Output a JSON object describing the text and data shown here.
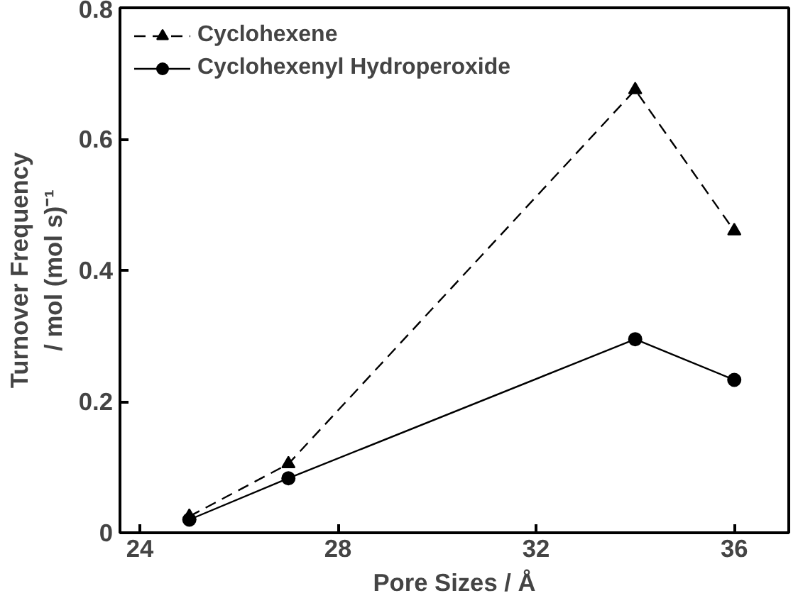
{
  "chart_data": {
    "type": "line",
    "xlabel": "Pore Sizes / Å",
    "ylabel": "Turnover Frequency\n/ mol (mol s)⁻¹",
    "x": [
      25,
      27,
      34,
      36
    ],
    "series": [
      {
        "name": "Cyclohexene",
        "color": "#000000",
        "values": [
          0.025,
          0.105,
          0.675,
          0.46
        ],
        "marker": "triangle",
        "line_style": "dashed"
      },
      {
        "name": "Cyclohexenyl Hydroperoxide",
        "color": "#000000",
        "values": [
          0.02,
          0.083,
          0.295,
          0.233
        ],
        "marker": "circle",
        "line_style": "solid"
      }
    ],
    "xlim": [
      23.6,
      37.1
    ],
    "xticks": [
      24,
      28,
      32,
      36
    ],
    "ylim": [
      0,
      0.8
    ],
    "yticks": [
      0,
      0.2,
      0.4,
      0.6,
      0.8
    ],
    "grid": false,
    "legend": "top left"
  }
}
